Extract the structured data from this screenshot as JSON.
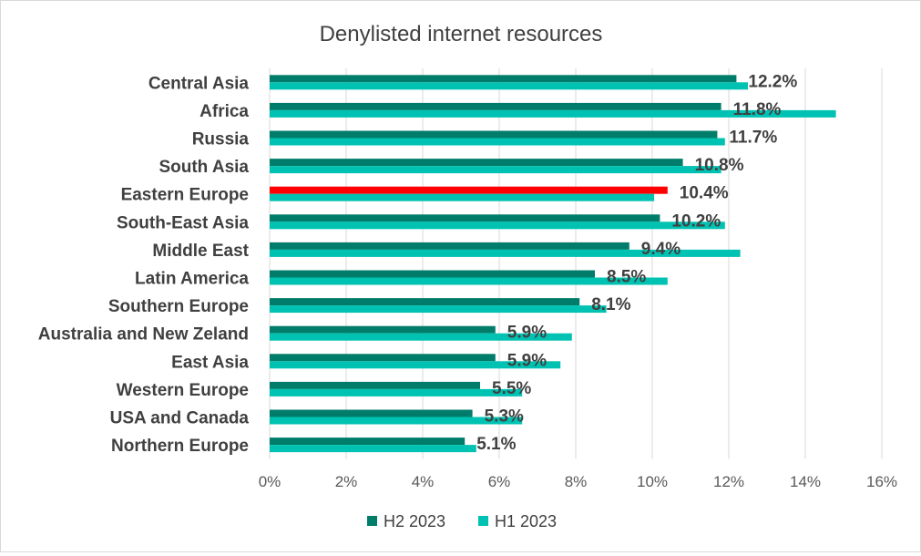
{
  "chart_data": {
    "type": "bar",
    "orientation": "horizontal",
    "title": "Denylisted internet resources",
    "categories": [
      "Central Asia",
      "Africa",
      "Russia",
      "South Asia",
      "Eastern Europe",
      "South-East Asia",
      "Middle East",
      "Latin America",
      "Southern Europe",
      "Australia and New Zeland",
      "East Asia",
      "Western Europe",
      "USA and Canada",
      "Northern Europe"
    ],
    "series": [
      {
        "name": "H2 2023",
        "color": "#007d6a",
        "values": [
          12.2,
          11.8,
          11.7,
          10.8,
          10.4,
          10.2,
          9.4,
          8.5,
          8.1,
          5.9,
          5.9,
          5.5,
          5.3,
          5.1
        ],
        "data_labels": [
          "12.2%",
          "11.8%",
          "11.7%",
          "10.8%",
          "10.4%",
          "10.2%",
          "9.4%",
          "8.5%",
          "8.1%",
          "5.9%",
          "5.9%",
          "5.5%",
          "5.3%",
          "5.1%"
        ]
      },
      {
        "name": "H1 2023",
        "color": "#00c2b2",
        "values": [
          12.5,
          14.8,
          11.9,
          11.8,
          10.05,
          11.9,
          12.3,
          10.4,
          8.8,
          7.9,
          7.6,
          6.6,
          6.6,
          5.4
        ]
      }
    ],
    "highlight": {
      "category": "Eastern Europe",
      "series": "H2 2023",
      "color": "#ff0000"
    },
    "xlim": [
      0,
      16
    ],
    "xticks": [
      "0%",
      "2%",
      "4%",
      "6%",
      "8%",
      "10%",
      "12%",
      "14%",
      "16%"
    ],
    "xtick_values": [
      0,
      2,
      4,
      6,
      8,
      10,
      12,
      14,
      16
    ],
    "grid": "vertical",
    "legend": "bottom-center",
    "xlabel": "",
    "ylabel": ""
  }
}
